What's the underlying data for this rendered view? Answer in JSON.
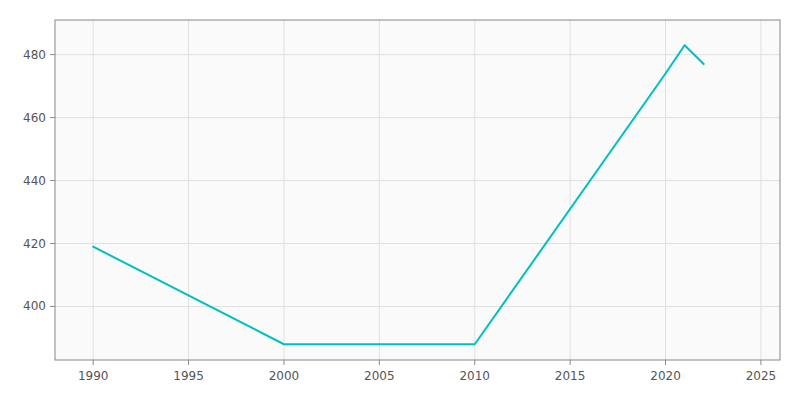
{
  "chart_data": {
    "type": "line",
    "x": [
      1990,
      2000,
      2010,
      2020,
      2021,
      2022
    ],
    "values": [
      419,
      388,
      388,
      474,
      483,
      477
    ],
    "color": "#00BFBF",
    "xlim": [
      1988,
      2026
    ],
    "ylim": [
      383,
      491
    ],
    "xticks": [
      1990,
      1995,
      2000,
      2005,
      2010,
      2015,
      2020,
      2025
    ],
    "yticks": [
      400,
      420,
      440,
      460,
      480
    ],
    "grid": true
  }
}
